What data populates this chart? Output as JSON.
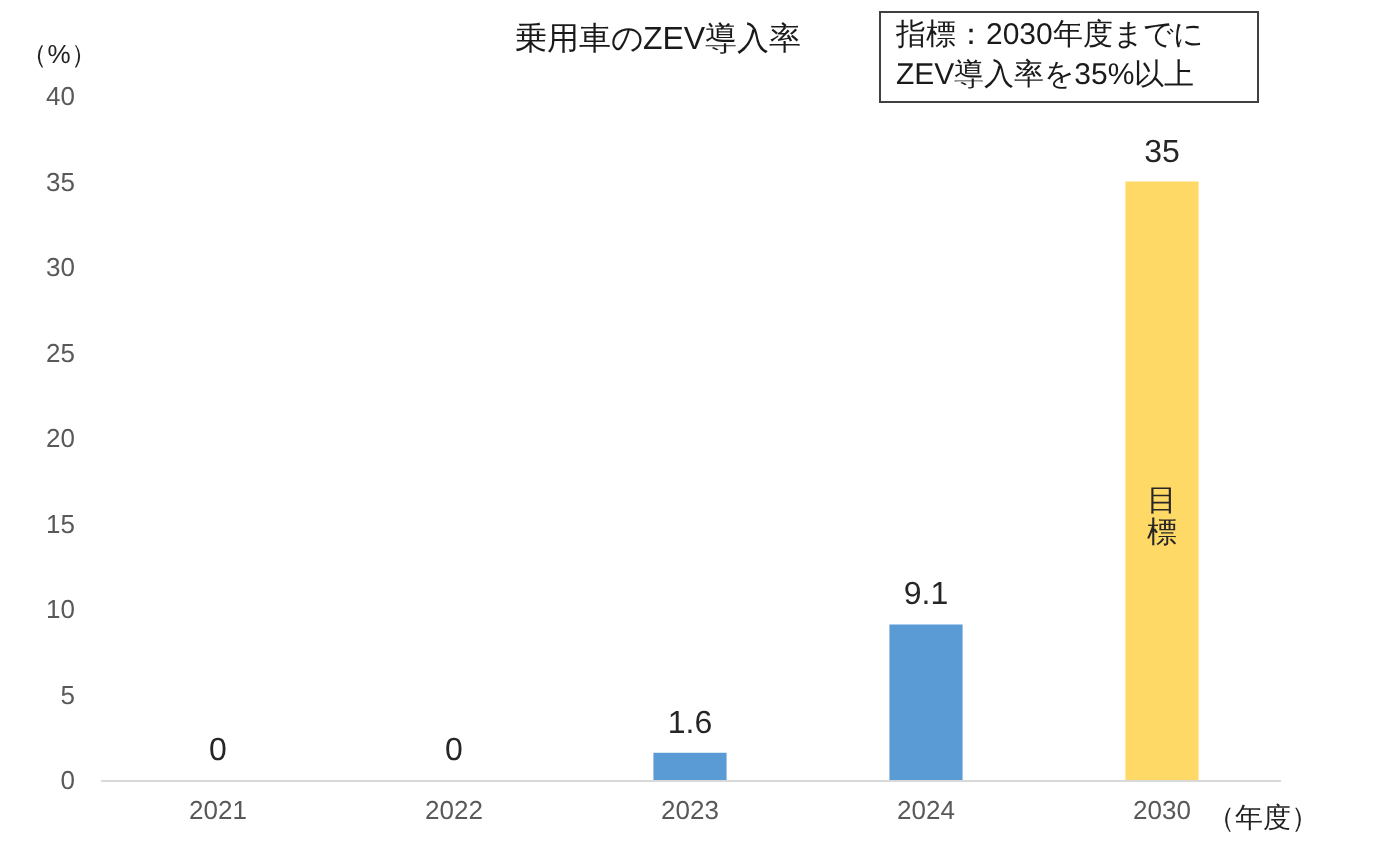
{
  "chart_data": {
    "type": "bar",
    "title": "乗用車のZEV導入率",
    "xlabel": "（年度）",
    "ylabel": "（%）",
    "categories": [
      "2021",
      "2022",
      "2023",
      "2024",
      "2030"
    ],
    "values": [
      0,
      0,
      1.6,
      9.1,
      35
    ],
    "colors": [
      "#5b9bd5",
      "#5b9bd5",
      "#5b9bd5",
      "#5b9bd5",
      "#ffd966"
    ],
    "ylim": [
      0,
      40
    ],
    "yticks": [
      0,
      5,
      10,
      15,
      20,
      25,
      30,
      35,
      40
    ],
    "data_labels": true,
    "annotations": [
      "指標：2030年度までに\nZEV導入率を35%以上",
      "目標"
    ]
  }
}
